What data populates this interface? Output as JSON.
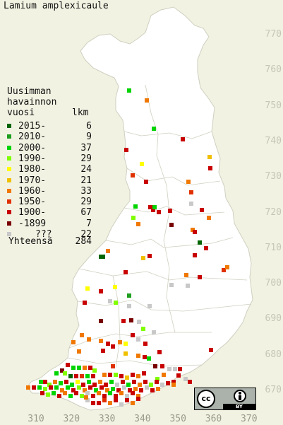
{
  "title": "Lamium amplexicaule",
  "legend": {
    "heading": [
      "Uusimman",
      "havainnon",
      "vuosi"
    ],
    "count_heading": "lkm",
    "items": [
      {
        "label": "2015-",
        "count": "6",
        "color": "#006400"
      },
      {
        "label": "2010-",
        "count": "9",
        "color": "#1e9e1e"
      },
      {
        "label": "2000-",
        "count": "37",
        "color": "#00d400"
      },
      {
        "label": "1990-",
        "count": "29",
        "color": "#80ff00"
      },
      {
        "label": "1980-",
        "count": "24",
        "color": "#ffff00"
      },
      {
        "label": "1970-",
        "count": "21",
        "color": "#f0c000"
      },
      {
        "label": "1960-",
        "count": "33",
        "color": "#f07800"
      },
      {
        "label": "1950-",
        "count": "29",
        "color": "#e03000"
      },
      {
        "label": "1900-",
        "count": "67",
        "color": "#c80000"
      },
      {
        "label": "-1899",
        "count": "7",
        "color": "#780000"
      },
      {
        "label": "???",
        "count": "22",
        "color": "#c8c8c8"
      }
    ],
    "total_label": "Yhteensä",
    "total_count": "284"
  },
  "axes": {
    "y_ticks": [
      "770",
      "760",
      "750",
      "740",
      "730",
      "720",
      "710",
      "700",
      "690",
      "680",
      "670"
    ],
    "x_ticks": [
      "310",
      "320",
      "330",
      "340",
      "350",
      "360",
      "370"
    ]
  },
  "license_badge": {
    "icon": "cc-by-icon",
    "text": "BY"
  }
}
